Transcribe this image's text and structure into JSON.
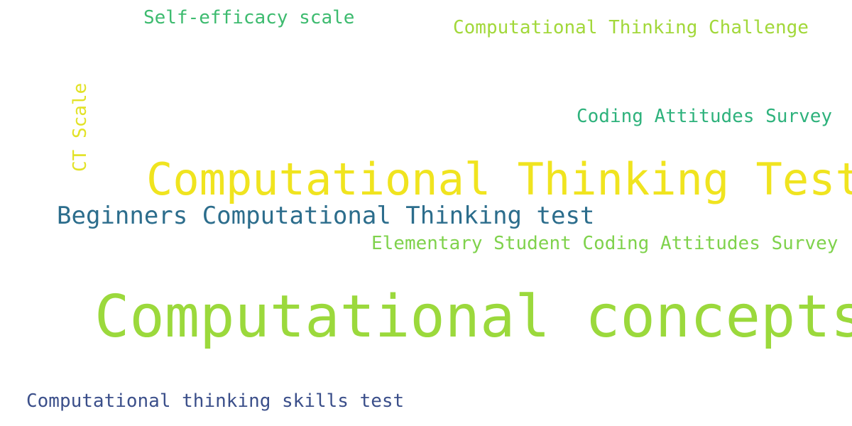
{
  "words": [
    {
      "text": "Self-efficacy scale",
      "color": "#3dbb6f"
    },
    {
      "text": "Computational Thinking Challenge",
      "color": "#a2d83a"
    },
    {
      "text": "CT Scale",
      "color": "#e2e226"
    },
    {
      "text": "Coding Attitudes Survey",
      "color": "#2eb27c"
    },
    {
      "text": "Computational Thinking Test",
      "color": "#f0e41f"
    },
    {
      "text": "Beginners Computational Thinking test",
      "color": "#2c6d8c"
    },
    {
      "text": "Elementary Student Coding Attitudes Survey",
      "color": "#7fd24c"
    },
    {
      "text": "Computational concepts",
      "color": "#9bd93c"
    },
    {
      "text": "Computational thinking skills test",
      "color": "#3b4f8a"
    }
  ]
}
